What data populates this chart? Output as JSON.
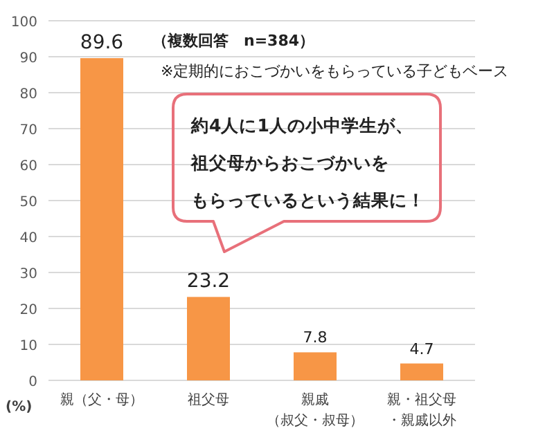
{
  "chart_data": {
    "type": "bar",
    "categories": [
      "親（父・母）",
      "祖父母",
      "親戚（叔父・叔母）",
      "親・祖父母・親戚以外"
    ],
    "values": [
      89.6,
      23.2,
      7.8,
      4.7
    ],
    "color": "#f79646",
    "ylabel": "(%)",
    "ylim": [
      0,
      100
    ],
    "yticks": [
      0,
      10,
      20,
      30,
      40,
      50,
      60,
      70,
      80,
      90,
      100
    ],
    "grid": "y",
    "data_labels": true,
    "annotations": [
      "（複数回答　n=384）",
      "※定期的におこづかいをもらっている子どもベース",
      "約4人に1人の小中学生が、",
      "祖父母からおこづかいを",
      "もらっているという結果に！"
    ]
  }
}
